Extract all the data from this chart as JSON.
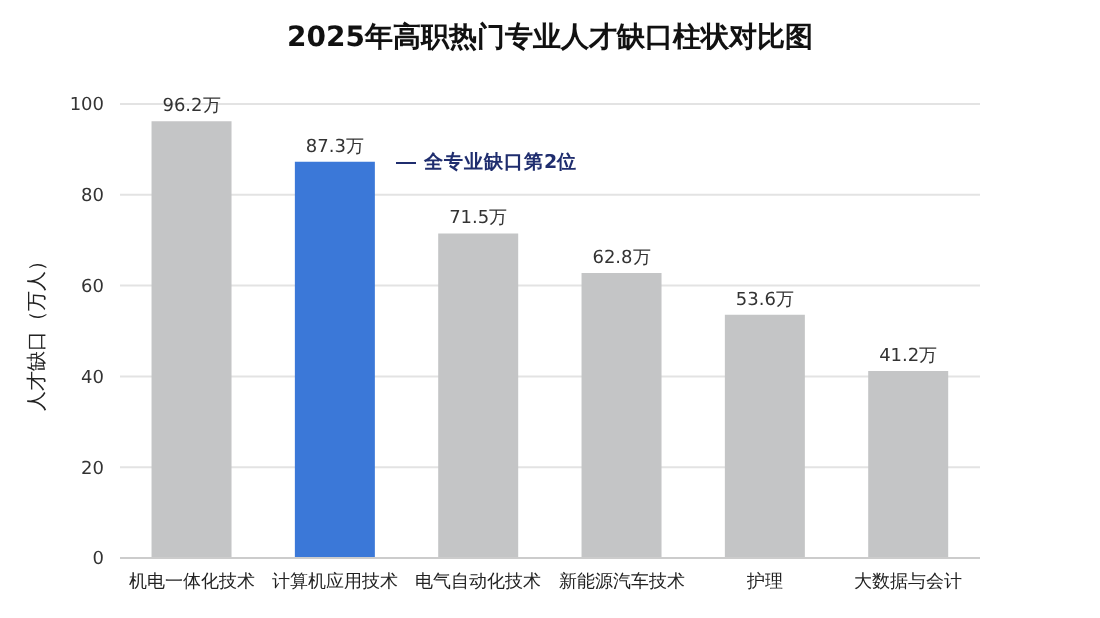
{
  "chart_data": {
    "type": "bar",
    "title": "2025年高职热门专业人才缺口柱状对比图",
    "ylabel": "人才缺口（万人）",
    "categories": [
      "机电一体化技术",
      "计算机应用技术",
      "电气自动化技术",
      "新能源汽车技术",
      "护理",
      "大数据与会计"
    ],
    "values": [
      96.2,
      87.3,
      71.5,
      62.8,
      53.6,
      41.2
    ],
    "value_labels": [
      "96.2万",
      "87.3万",
      "71.5万",
      "62.8万",
      "53.6万",
      "41.2万"
    ],
    "colors": [
      "#c4c5c6",
      "#3b78d8",
      "#c4c5c6",
      "#c4c5c6",
      "#c4c5c6",
      "#c4c5c6"
    ],
    "annotations": [
      "全专业缺口第2位"
    ],
    "ylim": [
      0,
      100
    ],
    "yticks": [
      0,
      20,
      40,
      60,
      80,
      100
    ],
    "grid": "y",
    "legend": false
  }
}
